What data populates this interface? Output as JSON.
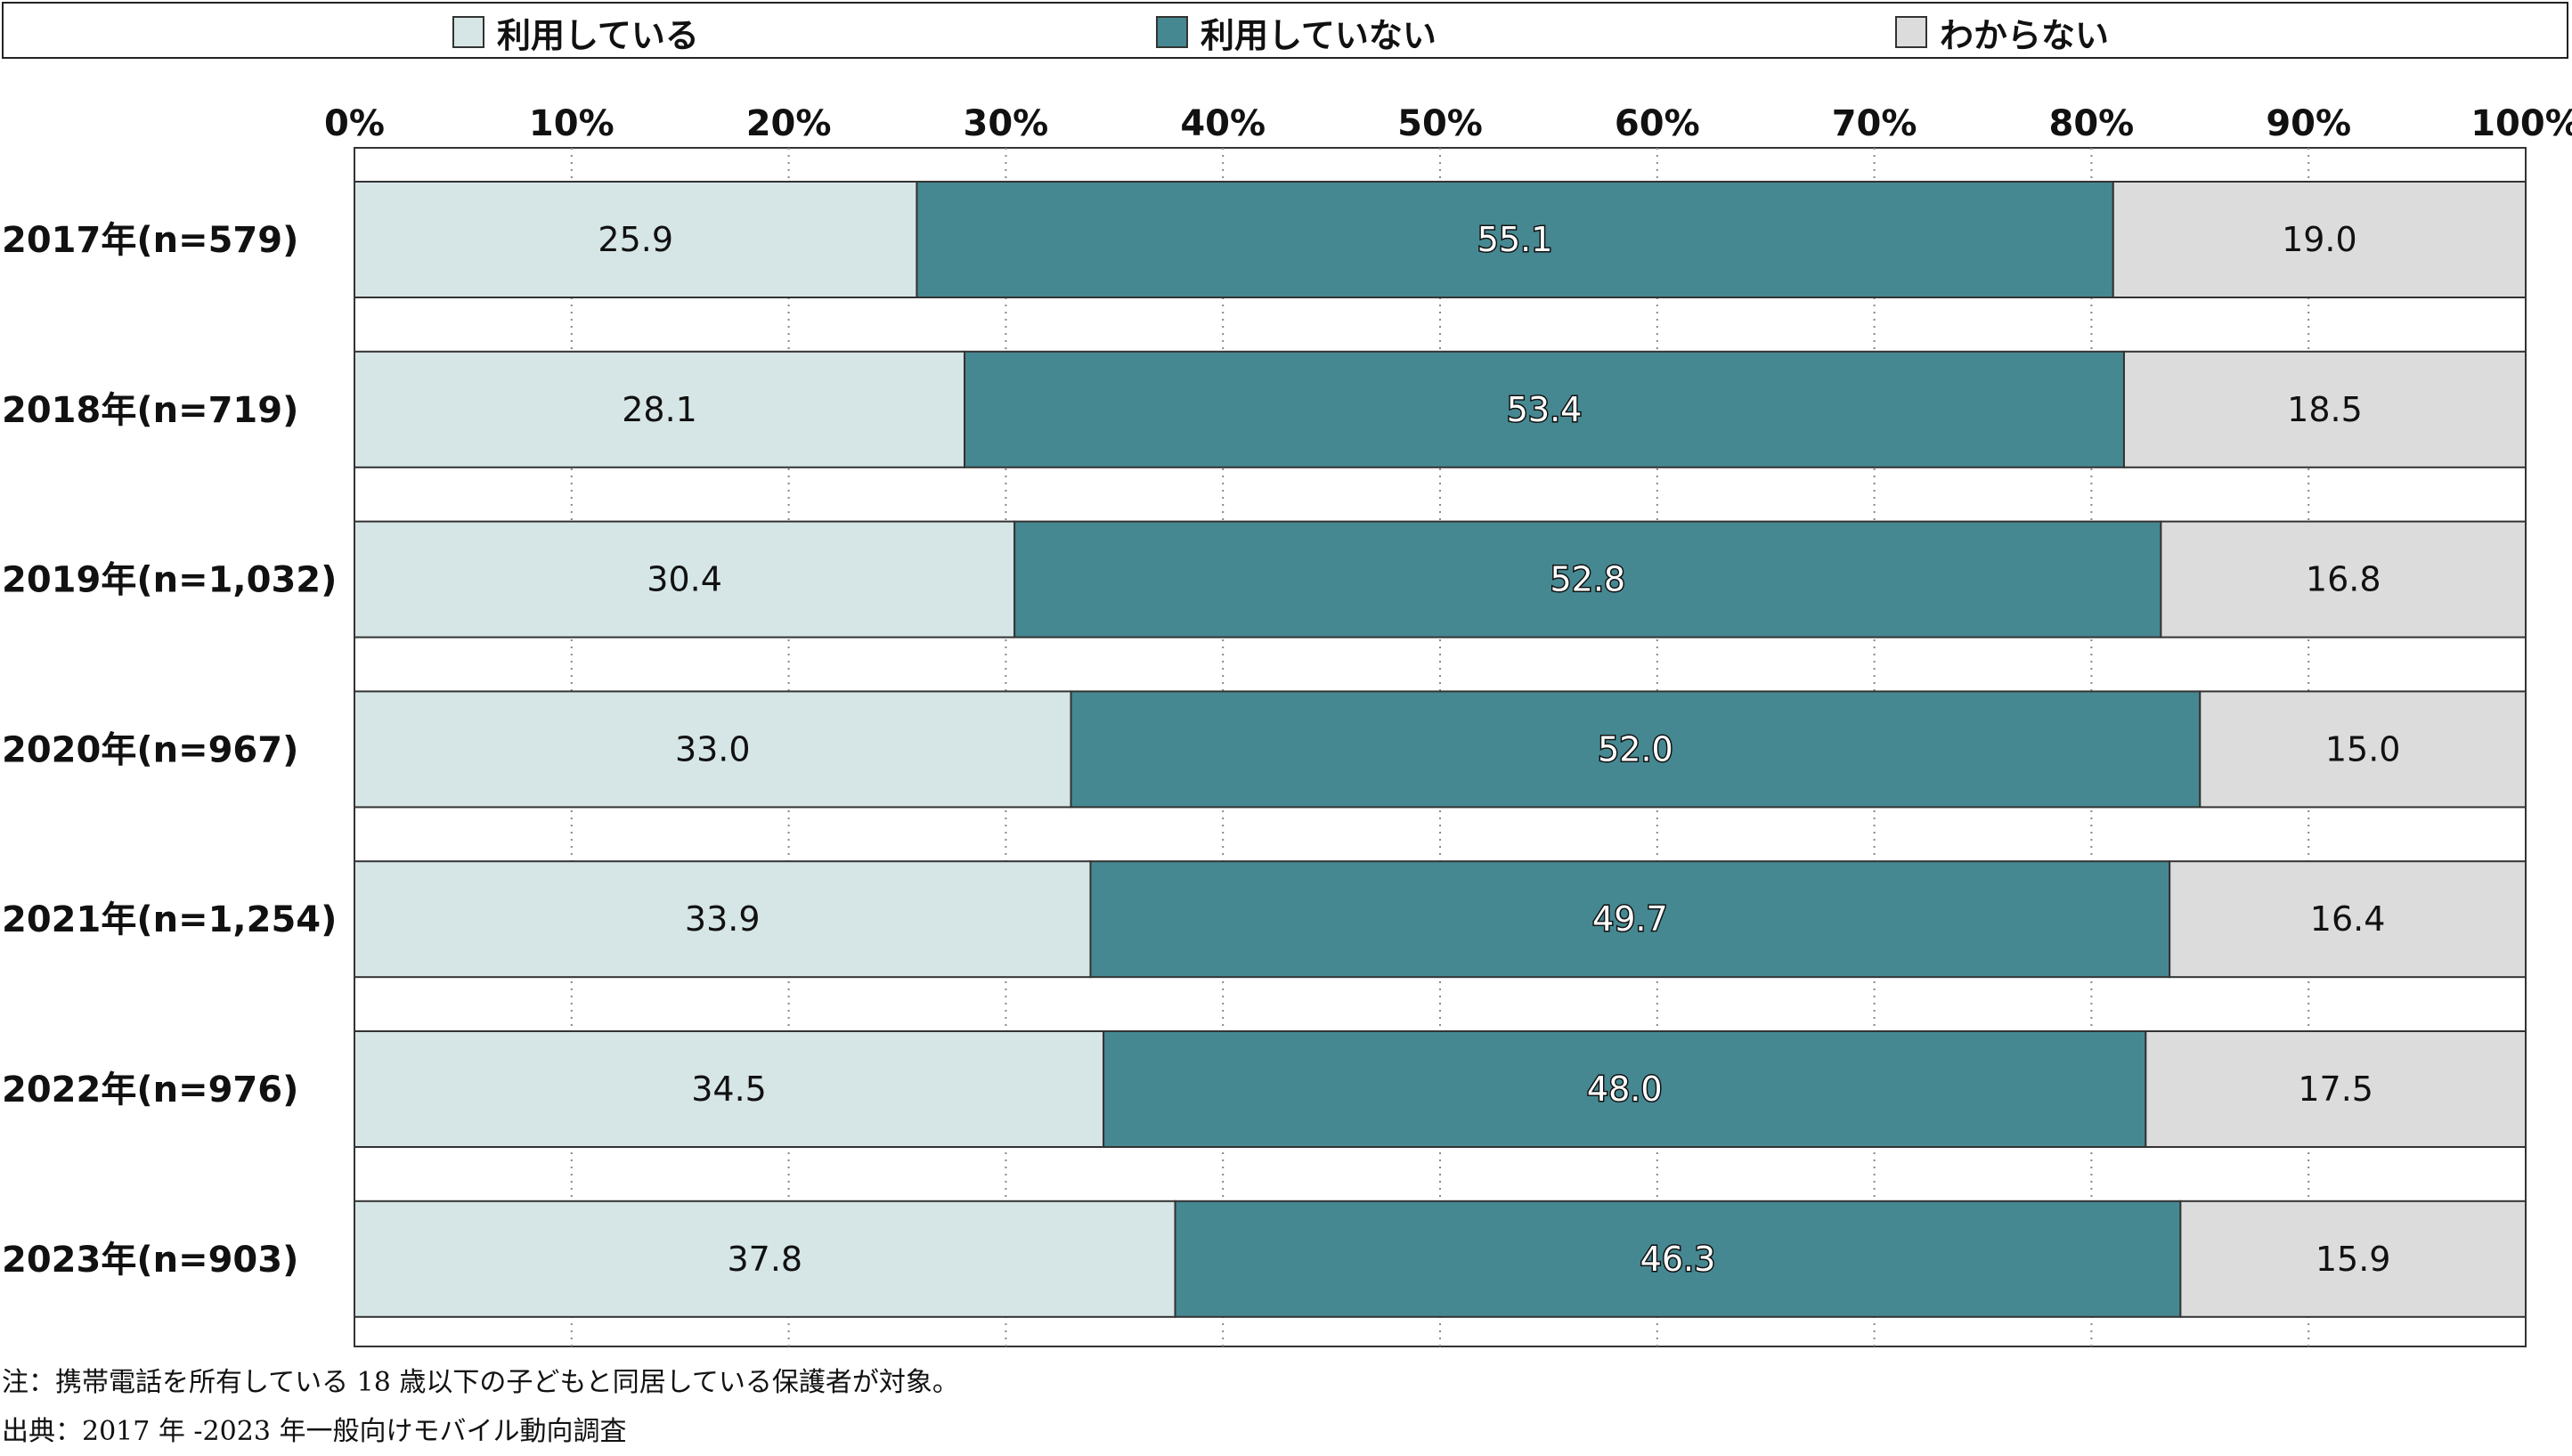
{
  "chart_data": {
    "type": "bar",
    "orientation": "horizontal",
    "stacked": true,
    "categories": [
      "2017年(n=579)",
      "2018年(n=719)",
      "2019年(n=1,032)",
      "2020年(n=967)",
      "2021年(n=1,254)",
      "2022年(n=976)",
      "2023年(n=903)"
    ],
    "series": [
      {
        "name": "利用している",
        "color": "#d6e5e6",
        "values": [
          25.9,
          28.1,
          30.4,
          33.0,
          33.9,
          34.5,
          37.8
        ],
        "labels": [
          "25.9",
          "28.1",
          "30.4",
          "33.0",
          "33.9",
          "34.5",
          "37.8"
        ]
      },
      {
        "name": "利用していない",
        "color": "#468891",
        "values": [
          55.1,
          53.4,
          52.8,
          52.0,
          49.7,
          48.0,
          46.3
        ],
        "labels": [
          "55.1",
          "53.4",
          "52.8",
          "52.0",
          "49.7",
          "48.0",
          "46.3"
        ]
      },
      {
        "name": "わからない",
        "color": "#dcdcdc",
        "values": [
          19.0,
          18.5,
          16.8,
          15.0,
          16.4,
          17.5,
          15.9
        ],
        "labels": [
          "19.0",
          "18.5",
          "16.8",
          "15.0",
          "16.4",
          "17.5",
          "15.9"
        ]
      }
    ],
    "xlim": [
      0,
      100
    ],
    "xticks": [
      "0%",
      "10%",
      "20%",
      "30%",
      "40%",
      "50%",
      "60%",
      "70%",
      "80%",
      "90%",
      "100%"
    ],
    "grid": "vertical dotted",
    "legend_position": "top"
  },
  "notes": {
    "note": "注：携帯電話を所有している 18 歳以下の子どもと同居している保護者が対象。",
    "source": "出典：2017 年 -2023 年一般向けモバイル動向調査"
  }
}
